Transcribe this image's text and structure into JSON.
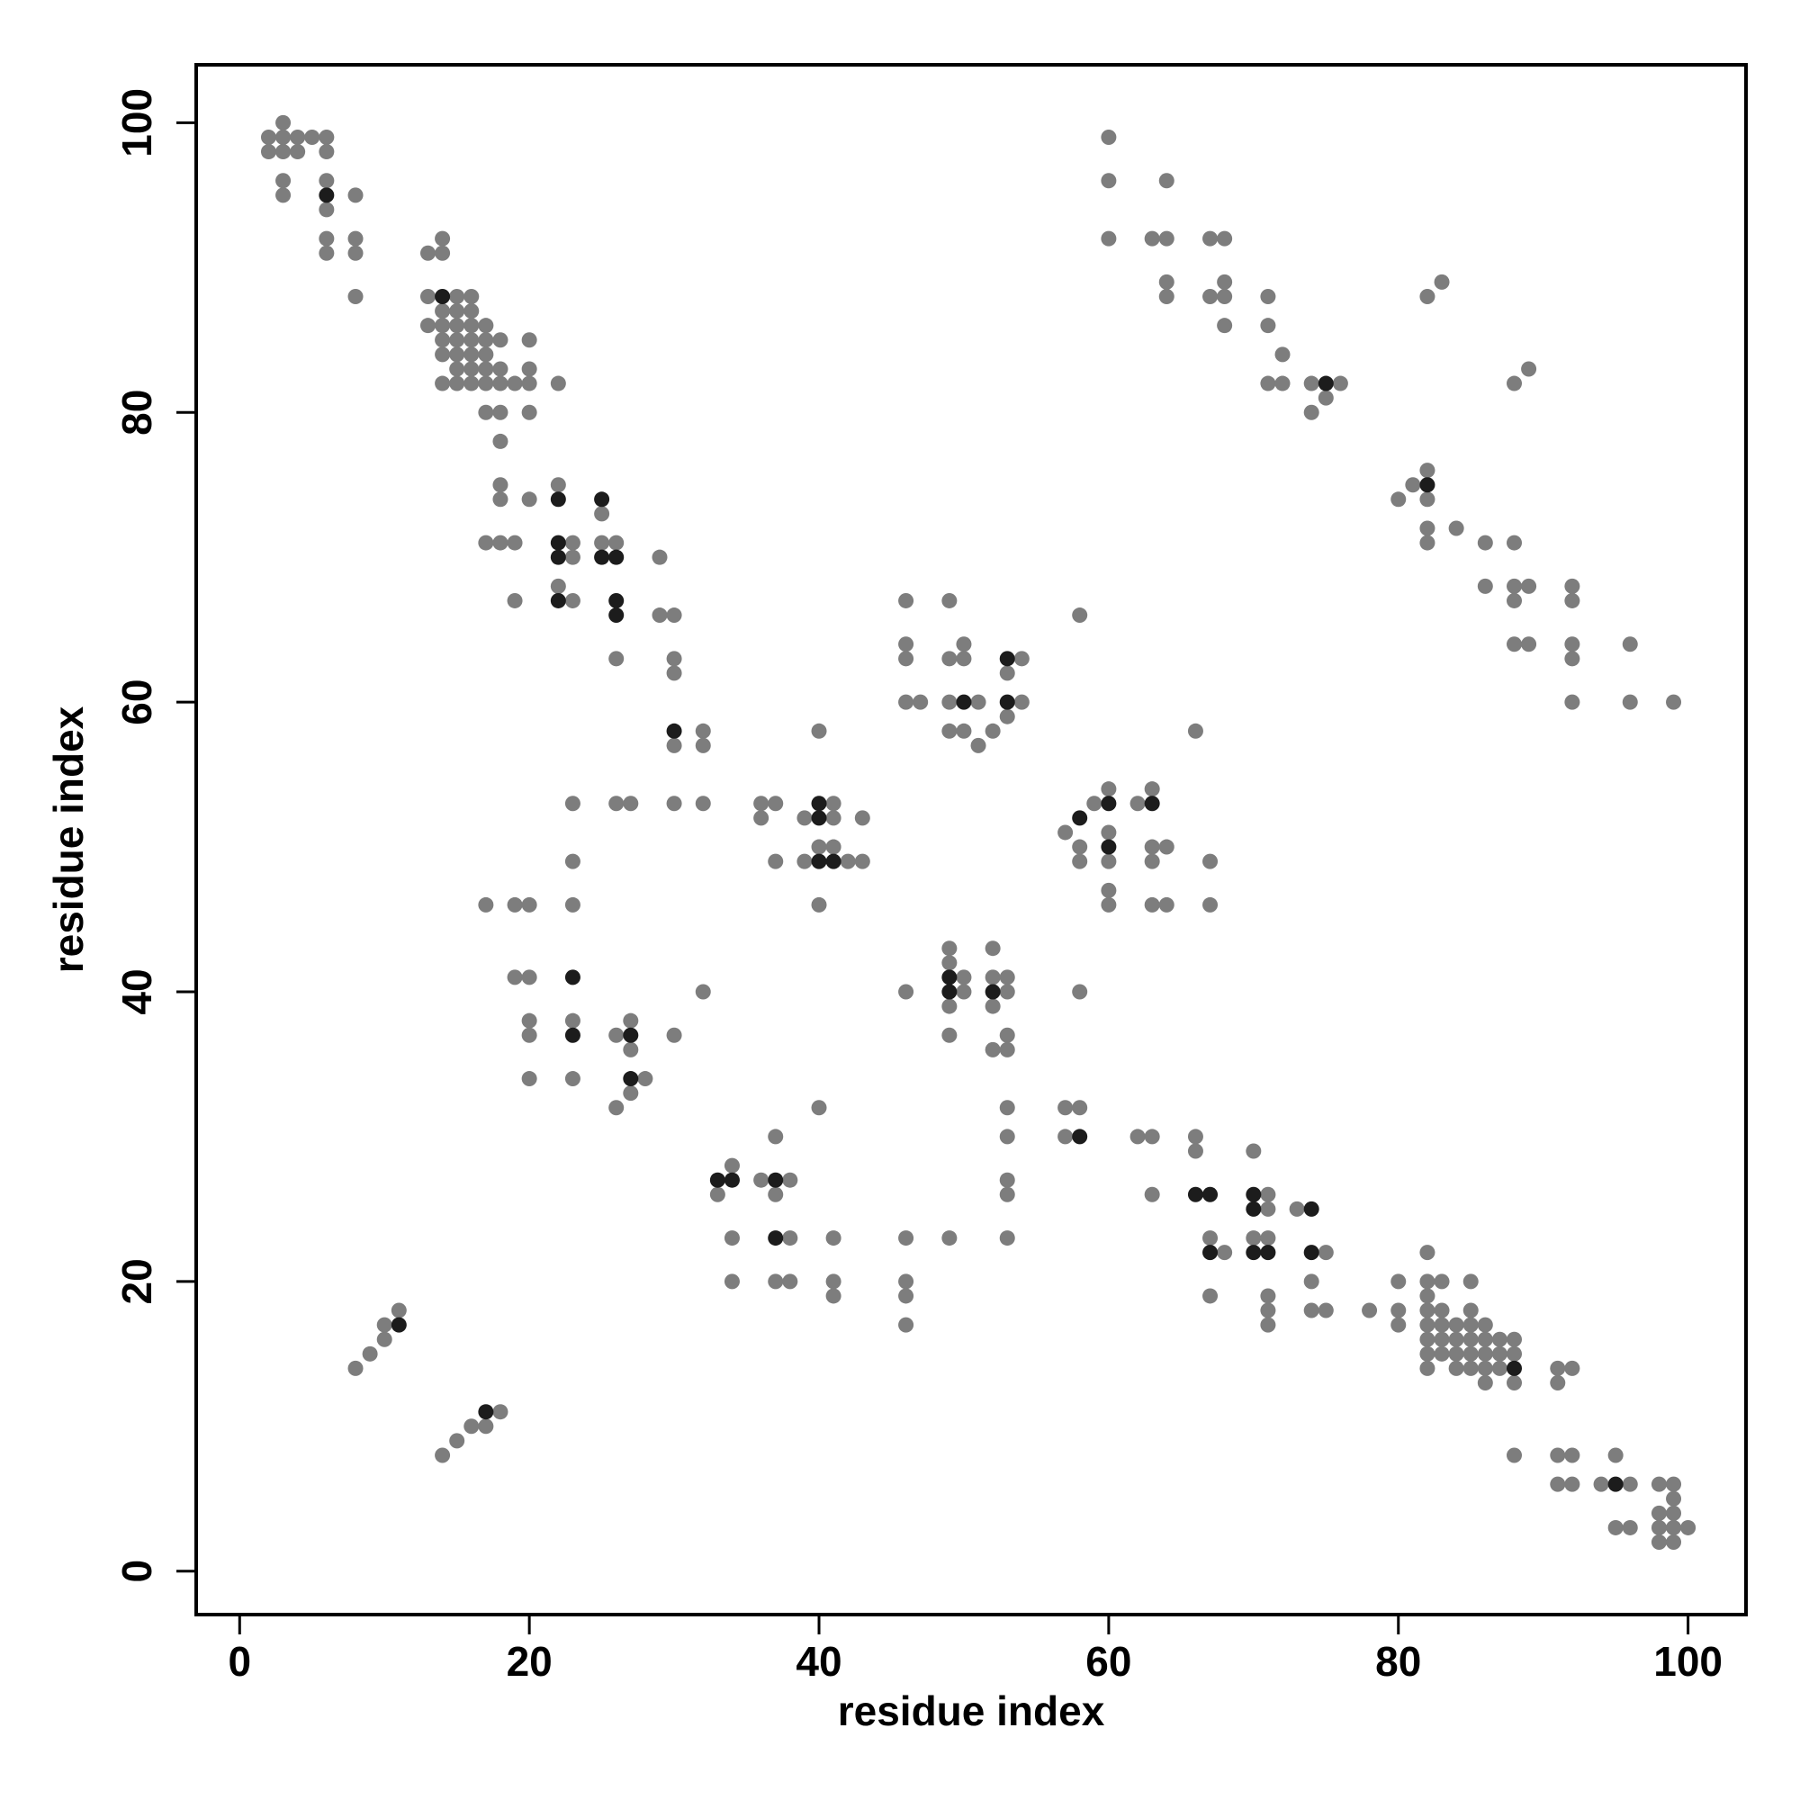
{
  "chart_data": {
    "type": "scatter",
    "xlabel": "residue index",
    "ylabel": "residue index",
    "xlim": [
      -3,
      104
    ],
    "ylim": [
      -3,
      104
    ],
    "xticks": [
      0,
      20,
      40,
      60,
      80,
      100
    ],
    "yticks": [
      0,
      20,
      40,
      60,
      80,
      100
    ],
    "series": [
      {
        "color": "#7d7d7d",
        "x": [
          2,
          2,
          3,
          3,
          3,
          4,
          4,
          5,
          6,
          6,
          3,
          3,
          6,
          6,
          6,
          6,
          8,
          8,
          8,
          8,
          13,
          14,
          14,
          13,
          15,
          16,
          13,
          14,
          15,
          16,
          14,
          15,
          16,
          17,
          14,
          15,
          16,
          17,
          18,
          14,
          15,
          16,
          17,
          15,
          16,
          17,
          18,
          14,
          15,
          16,
          17,
          18,
          19,
          20,
          20,
          20,
          22,
          18,
          17,
          20,
          18,
          18,
          18,
          20,
          17,
          18,
          19,
          19,
          22,
          23,
          23,
          22,
          23,
          25,
          25,
          26,
          26,
          29,
          29,
          30,
          30,
          30,
          30,
          32,
          32,
          26,
          27,
          30,
          32,
          23,
          23,
          23,
          17,
          19,
          20,
          19,
          20,
          20,
          20,
          20,
          23,
          23,
          26,
          27,
          27,
          27,
          28,
          26,
          30,
          32,
          36,
          36,
          37,
          37,
          39,
          39,
          40,
          41,
          41,
          41,
          42,
          43,
          43,
          40,
          40,
          46,
          46,
          46,
          46,
          47,
          49,
          49,
          50,
          50,
          49,
          51,
          49,
          50,
          51,
          52,
          53,
          53,
          54,
          54,
          58,
          57,
          59,
          60,
          60,
          60,
          58,
          58,
          60,
          60,
          62,
          63,
          63,
          63,
          64,
          63,
          64,
          66,
          67,
          67,
          46,
          49,
          49,
          49,
          50,
          50,
          52,
          52,
          52,
          53,
          53,
          52,
          53,
          53,
          49,
          58,
          53,
          53,
          53,
          53,
          53,
          57,
          57,
          58,
          62,
          63,
          63,
          66,
          66,
          67,
          68,
          67,
          70,
          70,
          71,
          71,
          71,
          71,
          71,
          71,
          73,
          75,
          74,
          74,
          75,
          78,
          33,
          34,
          34,
          34,
          36,
          37,
          37,
          38,
          38,
          37,
          38,
          40,
          41,
          41,
          41,
          46,
          46,
          46,
          46,
          49,
          8,
          9,
          10,
          10,
          11,
          14,
          15,
          16,
          17,
          18,
          80,
          80,
          80,
          82,
          82,
          82,
          82,
          82,
          82,
          82,
          82,
          83,
          83,
          83,
          83,
          83,
          84,
          84,
          84,
          84,
          85,
          85,
          85,
          85,
          85,
          85,
          86,
          86,
          86,
          86,
          86,
          87,
          87,
          87,
          88,
          88,
          88,
          88,
          91,
          91,
          92,
          91,
          92,
          91,
          92,
          94,
          95,
          96,
          95,
          96,
          98,
          99,
          99,
          98,
          99,
          98,
          99,
          100,
          98,
          99,
          60,
          60,
          60,
          63,
          64,
          64,
          64,
          64,
          67,
          68,
          67,
          68,
          68,
          68,
          71,
          71,
          71,
          72,
          72,
          74,
          74,
          75,
          76,
          82,
          83,
          88,
          89,
          80,
          81,
          82,
          82,
          82,
          82,
          84,
          86,
          86,
          88,
          88,
          88,
          89,
          88,
          89,
          92,
          92,
          92,
          92,
          92,
          96,
          96,
          99
        ],
        "values": [
          99,
          98,
          100,
          99,
          98,
          99,
          98,
          99,
          99,
          98,
          96,
          95,
          96,
          94,
          92,
          91,
          95,
          92,
          91,
          88,
          91,
          92,
          91,
          88,
          88,
          88,
          86,
          87,
          87,
          87,
          86,
          86,
          86,
          86,
          85,
          85,
          85,
          85,
          85,
          84,
          84,
          84,
          84,
          83,
          83,
          83,
          83,
          82,
          82,
          82,
          82,
          82,
          82,
          85,
          83,
          82,
          82,
          80,
          80,
          80,
          78,
          75,
          74,
          74,
          71,
          71,
          71,
          67,
          75,
          71,
          70,
          68,
          67,
          73,
          71,
          71,
          63,
          70,
          66,
          66,
          63,
          62,
          57,
          58,
          57,
          53,
          53,
          53,
          53,
          53,
          49,
          46,
          46,
          46,
          46,
          41,
          41,
          38,
          37,
          34,
          38,
          34,
          37,
          38,
          36,
          33,
          34,
          32,
          37,
          40,
          53,
          52,
          53,
          49,
          52,
          49,
          50,
          53,
          52,
          50,
          49,
          52,
          49,
          46,
          58,
          67,
          64,
          63,
          60,
          60,
          67,
          63,
          64,
          63,
          60,
          60,
          58,
          58,
          57,
          58,
          62,
          59,
          63,
          60,
          66,
          51,
          53,
          54,
          51,
          49,
          50,
          49,
          47,
          46,
          53,
          54,
          50,
          49,
          50,
          46,
          46,
          58,
          49,
          46,
          40,
          43,
          42,
          39,
          41,
          40,
          43,
          41,
          39,
          41,
          40,
          36,
          37,
          36,
          37,
          40,
          32,
          30,
          27,
          26,
          23,
          32,
          30,
          32,
          30,
          30,
          26,
          30,
          29,
          23,
          22,
          19,
          29,
          23,
          26,
          25,
          23,
          19,
          18,
          17,
          25,
          22,
          20,
          18,
          18,
          18,
          26,
          28,
          23,
          20,
          27,
          26,
          30,
          27,
          23,
          20,
          20,
          32,
          23,
          20,
          19,
          23,
          20,
          19,
          17,
          23,
          14,
          15,
          16,
          17,
          18,
          8,
          9,
          10,
          10,
          11,
          20,
          18,
          17,
          22,
          20,
          19,
          18,
          17,
          16,
          15,
          14,
          20,
          18,
          17,
          16,
          15,
          17,
          16,
          15,
          14,
          20,
          18,
          17,
          16,
          15,
          14,
          17,
          16,
          15,
          14,
          13,
          16,
          15,
          14,
          16,
          15,
          13,
          8,
          14,
          13,
          14,
          8,
          8,
          6,
          6,
          6,
          8,
          6,
          3,
          3,
          6,
          6,
          5,
          4,
          4,
          3,
          3,
          3,
          2,
          2,
          99,
          96,
          92,
          92,
          92,
          96,
          89,
          88,
          92,
          92,
          88,
          89,
          88,
          86,
          88,
          86,
          82,
          84,
          82,
          82,
          80,
          81,
          82,
          88,
          89,
          82,
          83,
          74,
          75,
          76,
          74,
          72,
          71,
          72,
          71,
          68,
          71,
          68,
          67,
          68,
          64,
          64,
          68,
          67,
          64,
          63,
          60,
          64,
          60,
          60
        ]
      },
      {
        "color": "#1c1c1c",
        "x": [
          6,
          14,
          22,
          22,
          22,
          22,
          25,
          25,
          26,
          26,
          26,
          30,
          23,
          23,
          27,
          27,
          40,
          40,
          40,
          41,
          50,
          53,
          53,
          58,
          60,
          60,
          63,
          49,
          49,
          52,
          58,
          66,
          67,
          67,
          70,
          70,
          70,
          71,
          74,
          74,
          33,
          34,
          37,
          37,
          11,
          17,
          88,
          95,
          75,
          82
        ],
        "values": [
          95,
          88,
          74,
          71,
          70,
          67,
          74,
          70,
          70,
          67,
          66,
          58,
          41,
          37,
          37,
          34,
          53,
          52,
          49,
          49,
          60,
          63,
          60,
          52,
          53,
          50,
          53,
          41,
          40,
          40,
          30,
          26,
          26,
          22,
          26,
          25,
          22,
          22,
          25,
          22,
          27,
          27,
          27,
          23,
          17,
          11,
          14,
          6,
          82,
          75
        ]
      }
    ]
  }
}
